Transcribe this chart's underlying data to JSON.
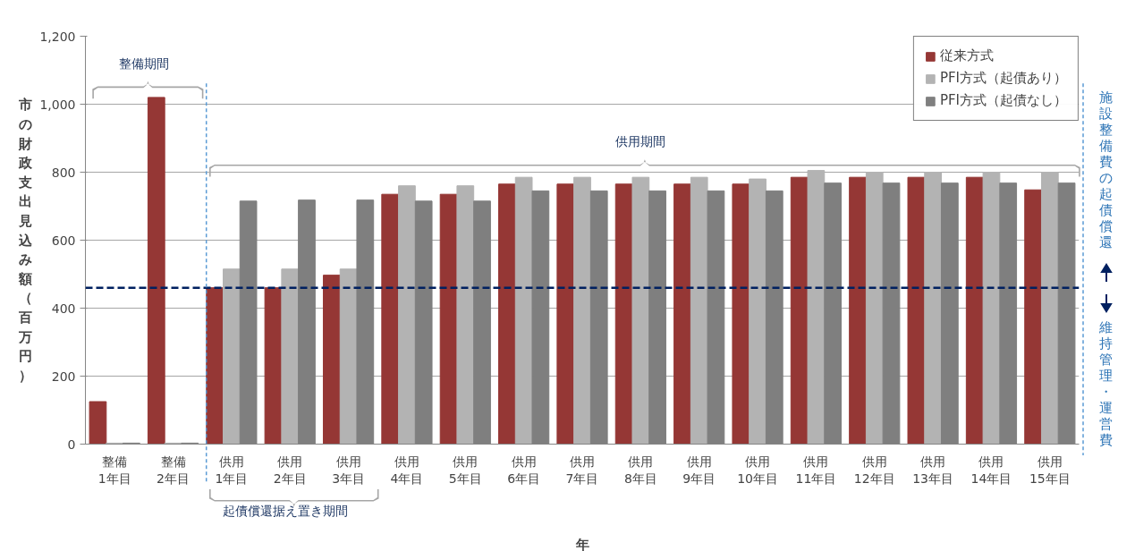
{
  "chart_data": {
    "type": "bar",
    "xlabel": "年",
    "ylabel": "市の財政支出見込み額（百万円）",
    "categories": [
      "整備\n1年目",
      "整備\n2年目",
      "供用\n1年目",
      "供用\n2年目",
      "供用\n3年目",
      "供用\n4年目",
      "供用\n5年目",
      "供用\n6年目",
      "供用\n7年目",
      "供用\n8年目",
      "供用\n9年目",
      "供用\n10年目",
      "供用\n11年目",
      "供用\n12年目",
      "供用\n13年目",
      "供用\n14年目",
      "供用\n15年目"
    ],
    "series": [
      {
        "name": "従来方式",
        "color": "#953735",
        "values": [
          125,
          1020,
          460,
          460,
          497,
          735,
          735,
          765,
          765,
          765,
          765,
          765,
          785,
          785,
          785,
          785,
          748
        ]
      },
      {
        "name": "PFI方式（起債あり）",
        "color": "#b3b3b3",
        "values": [
          3,
          3,
          515,
          515,
          515,
          760,
          760,
          785,
          785,
          785,
          785,
          780,
          805,
          800,
          800,
          800,
          800
        ]
      },
      {
        "name": "PFI方式（起債なし）",
        "color": "#7f7f7f",
        "values": [
          3,
          3,
          715,
          718,
          718,
          715,
          715,
          745,
          745,
          745,
          745,
          745,
          768,
          768,
          768,
          768,
          768
        ]
      }
    ],
    "ylim": [
      0,
      1200
    ],
    "yticks": [
      0,
      200,
      400,
      600,
      800,
      {
        "value": 1000,
        "label": "1,000"
      },
      {
        "value": 1200,
        "label": "1,200"
      }
    ],
    "grid": "y",
    "legend": "top right",
    "annotations": [
      "整備期間",
      "供用期間",
      "起債償還据え置き期間",
      "施設整備費の起債償還",
      "維持管理・運営費"
    ],
    "ref_lines": [
      {
        "axis": "y",
        "value": 460,
        "color": "#002060",
        "line_style": "dashed"
      }
    ]
  }
}
